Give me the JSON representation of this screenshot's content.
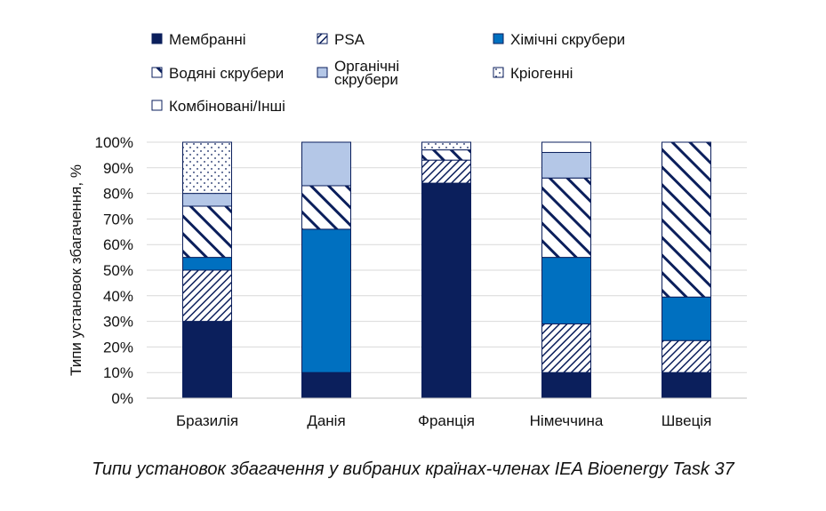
{
  "caption": "Типи установок збагачення у вибраних країнах-членах IEA Bioenergy Task 37",
  "chart_data": {
    "type": "bar",
    "stacked": true,
    "ylabel": "Типи установок збагачення, %",
    "xlabel": "",
    "ylim": [
      0,
      100
    ],
    "yticks": [
      "0%",
      "10%",
      "20%",
      "30%",
      "40%",
      "50%",
      "60%",
      "70%",
      "80%",
      "90%",
      "100%"
    ],
    "grid": true,
    "legend_position": "top",
    "categories": [
      "Бразилія",
      "Данія",
      "Франція",
      "Німеччина",
      "Швеція"
    ],
    "series": [
      {
        "name": "Мембранні",
        "key": "membrane",
        "color": "#0b1f5c",
        "pattern": "solid",
        "values": [
          30,
          10,
          84,
          10,
          10
        ]
      },
      {
        "name": "PSA",
        "key": "psa",
        "color": "#0b1f5c",
        "pattern": "hatch-fine",
        "values": [
          20,
          0,
          9,
          19,
          12.5
        ]
      },
      {
        "name": "Хімічні скрубери",
        "key": "chemical",
        "color": "#0070c0",
        "pattern": "solid",
        "values": [
          5,
          56,
          0,
          26,
          17
        ]
      },
      {
        "name": "Водяні скрубери",
        "key": "water",
        "color": "#0b1f5c",
        "pattern": "hatch-wide",
        "values": [
          20,
          17,
          4,
          31,
          60.5
        ]
      },
      {
        "name": "Органічні скрубери",
        "key": "organic",
        "color": "#b4c7e7",
        "pattern": "solid",
        "values": [
          5,
          17,
          0,
          10,
          0
        ]
      },
      {
        "name": "Кріогенні",
        "key": "cryogenic",
        "color": "#0b1f5c",
        "pattern": "dots",
        "values": [
          20,
          0,
          3,
          0,
          0
        ]
      },
      {
        "name": "Комбіновані/Інші",
        "key": "combined",
        "color": "#ffffff",
        "pattern": "solid",
        "values": [
          0,
          0,
          0,
          4,
          0
        ]
      }
    ]
  }
}
